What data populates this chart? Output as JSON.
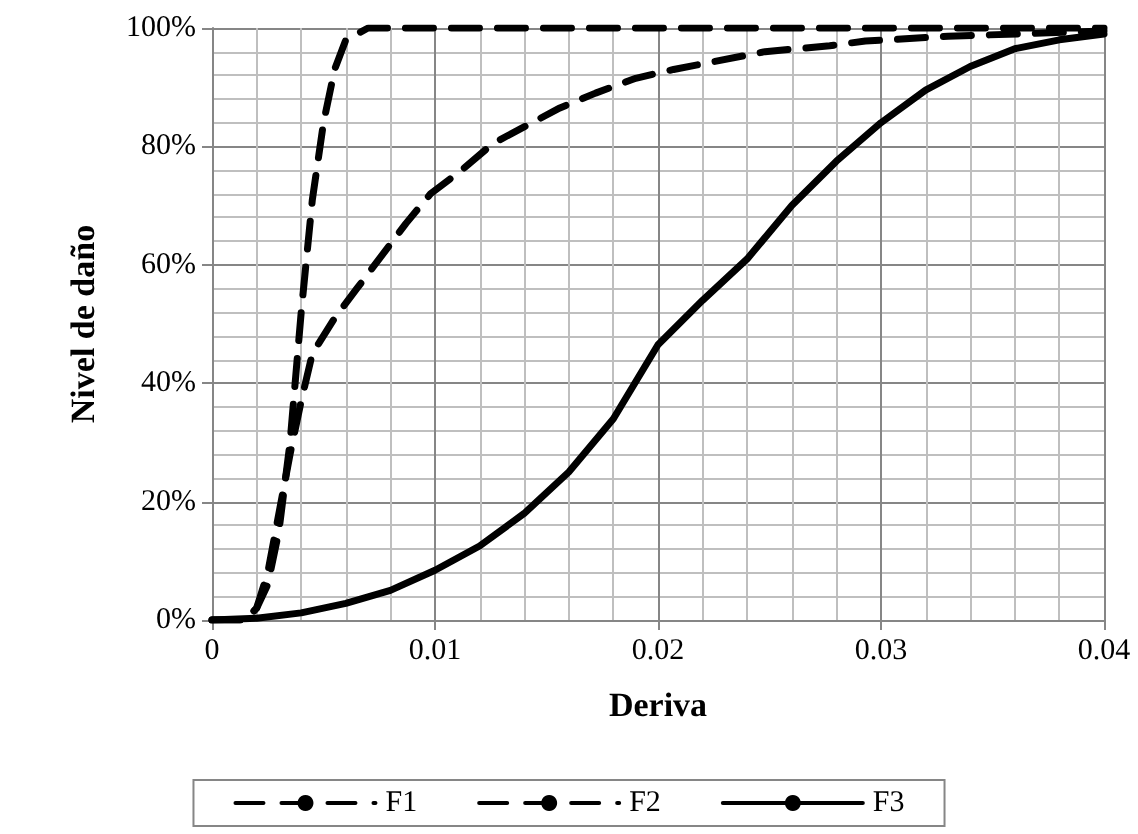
{
  "chart_data": {
    "type": "line",
    "xlabel": "Deriva",
    "ylabel": "Nivel de daño",
    "xlim": [
      0,
      0.04
    ],
    "xticks": [
      0,
      0.01,
      0.02,
      0.03,
      0.04
    ],
    "ylim": [
      0,
      100
    ],
    "yticks": [
      {
        "value": 0,
        "label": "0%"
      },
      {
        "value": 20,
        "label": "20%"
      },
      {
        "value": 40,
        "label": "40%"
      },
      {
        "value": 60,
        "label": "60%"
      },
      {
        "value": 80,
        "label": "80%"
      },
      {
        "value": 100,
        "label": "100%"
      }
    ],
    "grid": true,
    "legend": "bottom",
    "marker": "none",
    "series": [
      {
        "name": "F1",
        "color": "#000000",
        "line_style": "dashed",
        "x": [
          0,
          0.0015,
          0.002,
          0.0025,
          0.003,
          0.0035,
          0.004,
          0.0045,
          0.005,
          0.0055,
          0.006,
          0.007,
          0.04
        ],
        "values": [
          0,
          0,
          2,
          6,
          15,
          30,
          52,
          71,
          84,
          93,
          98,
          100,
          100
        ]
      },
      {
        "name": "F2",
        "color": "#000000",
        "line_style": "dashed",
        "x": [
          0,
          0.0015,
          0.002,
          0.0025,
          0.003,
          0.0035,
          0.004,
          0.0045,
          0.0055,
          0.0065,
          0.0087,
          0.0098,
          0.0112,
          0.0126,
          0.0156,
          0.0172,
          0.019,
          0.0207,
          0.0248,
          0.0277,
          0.0293,
          0.033,
          0.04
        ],
        "values": [
          0,
          0,
          2,
          8,
          18,
          28,
          37,
          45,
          51,
          56,
          67,
          72,
          76,
          80.5,
          86.5,
          89,
          91.5,
          93,
          96,
          97,
          97.8,
          98.6,
          99.5
        ]
      },
      {
        "name": "F3",
        "color": "#000000",
        "line_style": "solid",
        "x": [
          0,
          0.002,
          0.004,
          0.006,
          0.008,
          0.01,
          0.012,
          0.014,
          0.016,
          0.018,
          0.02,
          0.022,
          0.024,
          0.026,
          0.028,
          0.03,
          0.032,
          0.034,
          0.036,
          0.038,
          0.04
        ],
        "values": [
          0,
          0.3,
          1.2,
          2.8,
          5,
          8.4,
          12.5,
          18,
          25,
          34,
          46.5,
          54,
          61,
          70,
          77.5,
          84,
          89.5,
          93.5,
          96.5,
          98,
          99
        ]
      }
    ]
  }
}
